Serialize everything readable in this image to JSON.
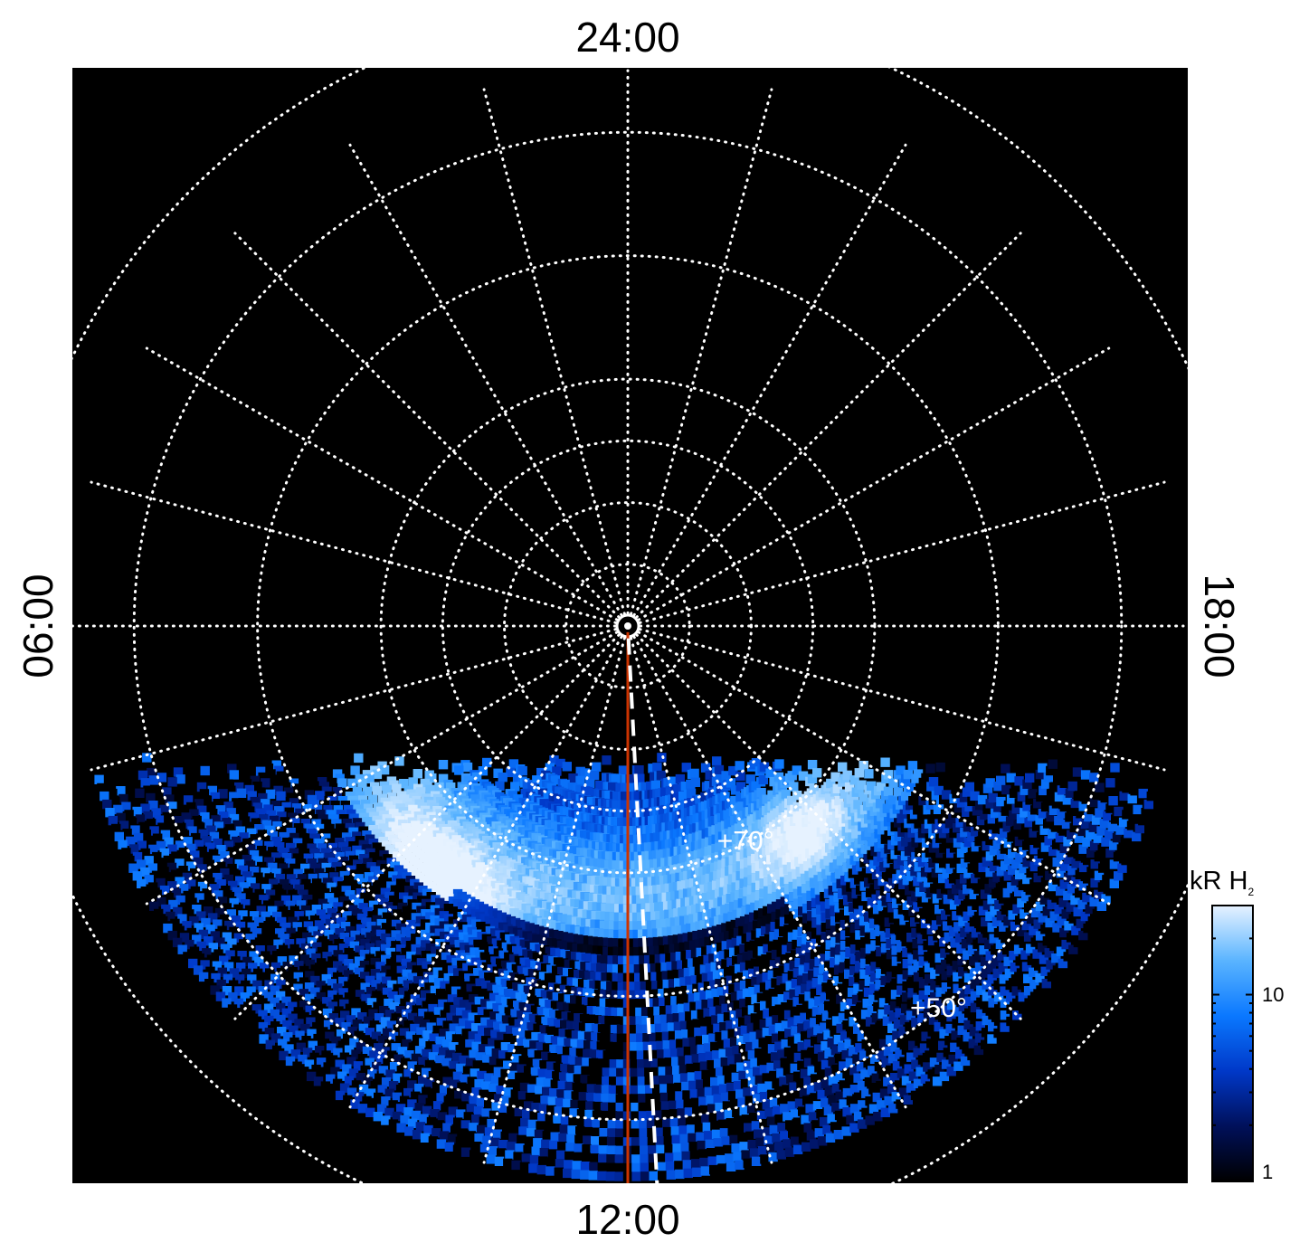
{
  "chart_data": {
    "type": "heatmap",
    "projection": "polar",
    "local_time_labels": {
      "top": "24:00",
      "bottom": "12:00",
      "left": "06:00",
      "right": "18:00"
    },
    "latitude_circles_deg": [
      85,
      80,
      75,
      70,
      60,
      50,
      40
    ],
    "latitude_labels": [
      {
        "text": "+70°",
        "lat": 70,
        "local_time_h": 13.9
      },
      {
        "text": "+50°",
        "lat": 50,
        "local_time_h": 14.6
      }
    ],
    "meridians_step_h": 1,
    "noon_line_color": "#cc3300",
    "dashed_line": {
      "from_lat": 89,
      "to_lat": 37,
      "local_time_h": 12.2
    },
    "emission": {
      "min_colatitude_deg": 45,
      "coverage_cutoff_lat": 40,
      "bright_oval": {
        "colatitude_deg": 22,
        "width_deg": 4
      },
      "hotspot_dawn": {
        "local_time_h": 9.5,
        "colatitude_deg": 25.5,
        "intensity_kR": 30
      },
      "hotspot_dusk": {
        "local_time_h": 14.7,
        "colatitude_deg": 22,
        "intensity_kR": 18
      }
    },
    "colorbar": {
      "title": "kR H",
      "title_sub": "2",
      "scale": "log",
      "range": [
        1,
        30
      ],
      "ticks": [
        {
          "value": 10,
          "label": "10"
        },
        {
          "value": 1,
          "label": "1"
        }
      ],
      "colors": [
        "#000000",
        "#00105a",
        "#0038c8",
        "#0a78ff",
        "#5ab4ff",
        "#e6f2ff"
      ]
    },
    "colors": {
      "background": "#000000",
      "grid": "#ffffff"
    }
  }
}
